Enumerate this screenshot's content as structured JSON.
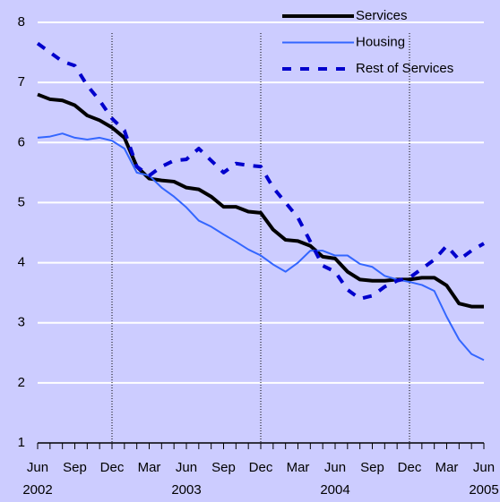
{
  "chart_data": {
    "type": "line",
    "categories": [
      "Jun",
      null,
      null,
      "Sep",
      null,
      null,
      "Dec",
      null,
      null,
      "Mar",
      null,
      null,
      "Jun",
      null,
      null,
      "Sep",
      null,
      null,
      "Dec",
      null,
      null,
      "Mar",
      null,
      null,
      "Jun",
      null,
      null,
      "Sep",
      null,
      null,
      "Dec",
      null,
      null,
      "Mar",
      null,
      null,
      "Jun"
    ],
    "years": [
      "2002",
      null,
      null,
      null,
      null,
      null,
      null,
      null,
      null,
      null,
      null,
      null,
      "2003",
      null,
      null,
      null,
      null,
      null,
      null,
      null,
      null,
      null,
      null,
      null,
      "2004",
      null,
      null,
      null,
      null,
      null,
      null,
      null,
      null,
      null,
      null,
      null,
      "2005"
    ],
    "series": [
      {
        "name": "Services",
        "color": "#000000",
        "width": 4,
        "dashed": false,
        "values": [
          6.8,
          6.72,
          6.7,
          6.62,
          6.45,
          6.37,
          6.25,
          6.08,
          5.6,
          5.4,
          5.37,
          5.35,
          5.25,
          5.22,
          5.1,
          4.93,
          4.93,
          4.85,
          4.83,
          4.55,
          4.38,
          4.36,
          4.28,
          4.1,
          4.07,
          3.85,
          3.72,
          3.7,
          3.7,
          3.72,
          3.72,
          3.75,
          3.75,
          3.62,
          3.32,
          3.27,
          3.27
        ]
      },
      {
        "name": "Housing",
        "color": "#3366ff",
        "width": 2,
        "dashed": false,
        "values": [
          6.08,
          6.1,
          6.15,
          6.08,
          6.05,
          6.08,
          6.03,
          5.9,
          5.5,
          5.45,
          5.25,
          5.1,
          4.92,
          4.7,
          4.6,
          4.47,
          4.35,
          4.22,
          4.12,
          3.97,
          3.85,
          4.0,
          4.2,
          4.2,
          4.12,
          4.12,
          3.98,
          3.93,
          3.78,
          3.72,
          3.68,
          3.63,
          3.53,
          3.1,
          2.72,
          2.48,
          2.38
        ]
      },
      {
        "name": "Rest of Services",
        "color": "#0000cc",
        "width": 4,
        "dashed": true,
        "values": [
          7.65,
          7.5,
          7.35,
          7.28,
          6.95,
          6.7,
          6.4,
          6.2,
          5.6,
          5.45,
          5.6,
          5.7,
          5.72,
          5.9,
          5.7,
          5.5,
          5.65,
          5.62,
          5.6,
          5.25,
          5.0,
          4.75,
          4.35,
          3.95,
          3.85,
          3.55,
          3.4,
          3.45,
          3.6,
          3.7,
          3.75,
          3.9,
          4.05,
          4.28,
          4.05,
          4.2,
          4.32
        ]
      }
    ],
    "ylim": [
      1,
      8
    ],
    "yticks": [
      1,
      2,
      3,
      4,
      5,
      6,
      7,
      8
    ],
    "grid": true,
    "background": "#ccccff"
  }
}
